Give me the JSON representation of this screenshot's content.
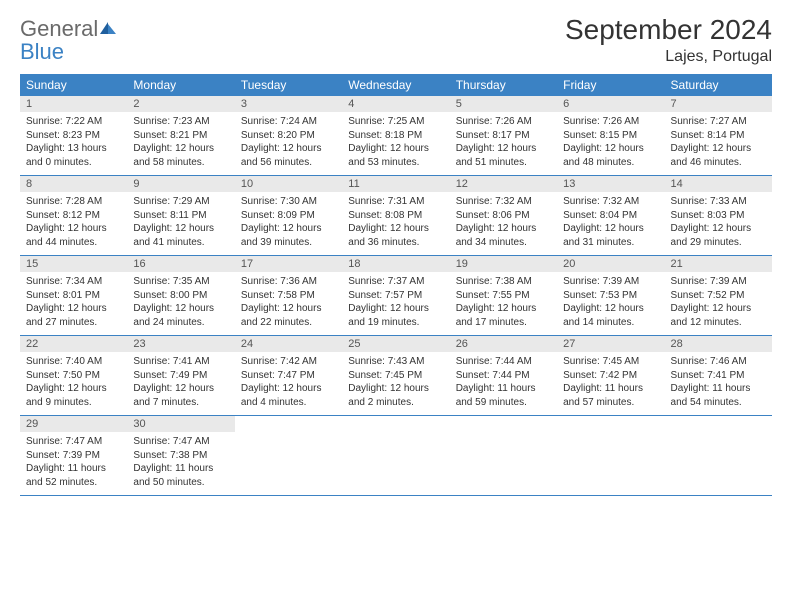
{
  "logo": {
    "general": "General",
    "blue": "Blue"
  },
  "title": "September 2024",
  "location": "Lajes, Portugal",
  "colors": {
    "header_bg": "#3b82c4",
    "header_text": "#ffffff",
    "daynum_bg": "#e9e9e9",
    "daynum_text": "#555555",
    "body_text": "#333333",
    "logo_gray": "#6a6a6a",
    "logo_blue": "#3b82c4",
    "page_bg": "#ffffff",
    "row_border": "#3b82c4"
  },
  "typography": {
    "title_fontsize": 28,
    "location_fontsize": 16,
    "header_fontsize": 12,
    "daynum_fontsize": 11,
    "body_fontsize": 10
  },
  "day_names": [
    "Sunday",
    "Monday",
    "Tuesday",
    "Wednesday",
    "Thursday",
    "Friday",
    "Saturday"
  ],
  "weeks": [
    [
      {
        "n": "1",
        "sr": "Sunrise: 7:22 AM",
        "ss": "Sunset: 8:23 PM",
        "dl": "Daylight: 13 hours and 0 minutes."
      },
      {
        "n": "2",
        "sr": "Sunrise: 7:23 AM",
        "ss": "Sunset: 8:21 PM",
        "dl": "Daylight: 12 hours and 58 minutes."
      },
      {
        "n": "3",
        "sr": "Sunrise: 7:24 AM",
        "ss": "Sunset: 8:20 PM",
        "dl": "Daylight: 12 hours and 56 minutes."
      },
      {
        "n": "4",
        "sr": "Sunrise: 7:25 AM",
        "ss": "Sunset: 8:18 PM",
        "dl": "Daylight: 12 hours and 53 minutes."
      },
      {
        "n": "5",
        "sr": "Sunrise: 7:26 AM",
        "ss": "Sunset: 8:17 PM",
        "dl": "Daylight: 12 hours and 51 minutes."
      },
      {
        "n": "6",
        "sr": "Sunrise: 7:26 AM",
        "ss": "Sunset: 8:15 PM",
        "dl": "Daylight: 12 hours and 48 minutes."
      },
      {
        "n": "7",
        "sr": "Sunrise: 7:27 AM",
        "ss": "Sunset: 8:14 PM",
        "dl": "Daylight: 12 hours and 46 minutes."
      }
    ],
    [
      {
        "n": "8",
        "sr": "Sunrise: 7:28 AM",
        "ss": "Sunset: 8:12 PM",
        "dl": "Daylight: 12 hours and 44 minutes."
      },
      {
        "n": "9",
        "sr": "Sunrise: 7:29 AM",
        "ss": "Sunset: 8:11 PM",
        "dl": "Daylight: 12 hours and 41 minutes."
      },
      {
        "n": "10",
        "sr": "Sunrise: 7:30 AM",
        "ss": "Sunset: 8:09 PM",
        "dl": "Daylight: 12 hours and 39 minutes."
      },
      {
        "n": "11",
        "sr": "Sunrise: 7:31 AM",
        "ss": "Sunset: 8:08 PM",
        "dl": "Daylight: 12 hours and 36 minutes."
      },
      {
        "n": "12",
        "sr": "Sunrise: 7:32 AM",
        "ss": "Sunset: 8:06 PM",
        "dl": "Daylight: 12 hours and 34 minutes."
      },
      {
        "n": "13",
        "sr": "Sunrise: 7:32 AM",
        "ss": "Sunset: 8:04 PM",
        "dl": "Daylight: 12 hours and 31 minutes."
      },
      {
        "n": "14",
        "sr": "Sunrise: 7:33 AM",
        "ss": "Sunset: 8:03 PM",
        "dl": "Daylight: 12 hours and 29 minutes."
      }
    ],
    [
      {
        "n": "15",
        "sr": "Sunrise: 7:34 AM",
        "ss": "Sunset: 8:01 PM",
        "dl": "Daylight: 12 hours and 27 minutes."
      },
      {
        "n": "16",
        "sr": "Sunrise: 7:35 AM",
        "ss": "Sunset: 8:00 PM",
        "dl": "Daylight: 12 hours and 24 minutes."
      },
      {
        "n": "17",
        "sr": "Sunrise: 7:36 AM",
        "ss": "Sunset: 7:58 PM",
        "dl": "Daylight: 12 hours and 22 minutes."
      },
      {
        "n": "18",
        "sr": "Sunrise: 7:37 AM",
        "ss": "Sunset: 7:57 PM",
        "dl": "Daylight: 12 hours and 19 minutes."
      },
      {
        "n": "19",
        "sr": "Sunrise: 7:38 AM",
        "ss": "Sunset: 7:55 PM",
        "dl": "Daylight: 12 hours and 17 minutes."
      },
      {
        "n": "20",
        "sr": "Sunrise: 7:39 AM",
        "ss": "Sunset: 7:53 PM",
        "dl": "Daylight: 12 hours and 14 minutes."
      },
      {
        "n": "21",
        "sr": "Sunrise: 7:39 AM",
        "ss": "Sunset: 7:52 PM",
        "dl": "Daylight: 12 hours and 12 minutes."
      }
    ],
    [
      {
        "n": "22",
        "sr": "Sunrise: 7:40 AM",
        "ss": "Sunset: 7:50 PM",
        "dl": "Daylight: 12 hours and 9 minutes."
      },
      {
        "n": "23",
        "sr": "Sunrise: 7:41 AM",
        "ss": "Sunset: 7:49 PM",
        "dl": "Daylight: 12 hours and 7 minutes."
      },
      {
        "n": "24",
        "sr": "Sunrise: 7:42 AM",
        "ss": "Sunset: 7:47 PM",
        "dl": "Daylight: 12 hours and 4 minutes."
      },
      {
        "n": "25",
        "sr": "Sunrise: 7:43 AM",
        "ss": "Sunset: 7:45 PM",
        "dl": "Daylight: 12 hours and 2 minutes."
      },
      {
        "n": "26",
        "sr": "Sunrise: 7:44 AM",
        "ss": "Sunset: 7:44 PM",
        "dl": "Daylight: 11 hours and 59 minutes."
      },
      {
        "n": "27",
        "sr": "Sunrise: 7:45 AM",
        "ss": "Sunset: 7:42 PM",
        "dl": "Daylight: 11 hours and 57 minutes."
      },
      {
        "n": "28",
        "sr": "Sunrise: 7:46 AM",
        "ss": "Sunset: 7:41 PM",
        "dl": "Daylight: 11 hours and 54 minutes."
      }
    ],
    [
      {
        "n": "29",
        "sr": "Sunrise: 7:47 AM",
        "ss": "Sunset: 7:39 PM",
        "dl": "Daylight: 11 hours and 52 minutes."
      },
      {
        "n": "30",
        "sr": "Sunrise: 7:47 AM",
        "ss": "Sunset: 7:38 PM",
        "dl": "Daylight: 11 hours and 50 minutes."
      },
      null,
      null,
      null,
      null,
      null
    ]
  ]
}
